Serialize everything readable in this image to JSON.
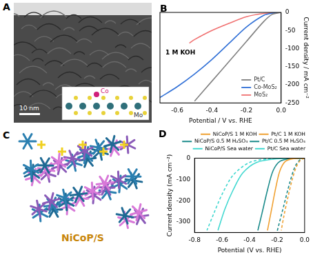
{
  "chart_data": [
    {
      "panel": "B",
      "type": "line",
      "x_label": "Potential / V vs. RHE",
      "y_label": "Current density / mA cm⁻²",
      "annotation": "1 M KOH",
      "xlim": [
        -0.7,
        0
      ],
      "xticks": [
        -0.6,
        -0.4,
        -0.2,
        {
          "value": 0,
          "label": "0.0"
        }
      ],
      "ylim": [
        -250,
        0
      ],
      "yticks": [
        0,
        -50,
        -100,
        -150,
        -200,
        -250
      ],
      "grid": false,
      "legend": "lower right",
      "series": [
        {
          "name": "Pt/C",
          "color": "#7f7f7f",
          "line_style": "solid",
          "x": [
            0,
            -0.05,
            -0.1,
            -0.2,
            -0.3,
            -0.4,
            -0.5
          ],
          "values": [
            0,
            -5,
            -25,
            -80,
            -135,
            -190,
            -245
          ]
        },
        {
          "name": "Co-MoS₂",
          "color": "#2f6fd6",
          "line_style": "solid",
          "x": [
            0,
            -0.05,
            -0.1,
            -0.2,
            -0.3,
            -0.4,
            -0.5,
            -0.6,
            -0.7
          ],
          "values": [
            0,
            -2,
            -8,
            -40,
            -85,
            -130,
            -170,
            -205,
            -235
          ]
        },
        {
          "name": "MoS₂",
          "color": "#f07070",
          "line_style": "solid",
          "x": [
            0,
            -0.1,
            -0.2,
            -0.3,
            -0.4,
            -0.5,
            -0.53
          ],
          "values": [
            0,
            -3,
            -12,
            -30,
            -50,
            -75,
            -85
          ]
        }
      ]
    },
    {
      "panel": "D",
      "type": "line",
      "x_label": "Potential (V vs. RHE)",
      "y_label": "Current density (mA cm⁻²)",
      "xlim": [
        -0.8,
        0
      ],
      "xticks": [
        -0.8,
        -0.6,
        -0.4,
        -0.2,
        {
          "value": 0,
          "label": "0.0"
        }
      ],
      "ylim": [
        -350,
        0
      ],
      "yticks": [
        0,
        -100,
        -200,
        -300
      ],
      "grid": false,
      "legend": "top",
      "series": [
        {
          "name": "NiCoP/S 1 M KOH",
          "color": "#f0a030",
          "line_style": "solid",
          "x": [
            0,
            -0.08,
            -0.14,
            -0.18,
            -0.21,
            -0.24,
            -0.27
          ],
          "values": [
            0,
            -2,
            -15,
            -60,
            -140,
            -240,
            -340
          ]
        },
        {
          "name": "Pt/C 1 M KOH",
          "color": "#f0a030",
          "line_style": "dashed",
          "x": [
            0,
            -0.03,
            -0.06,
            -0.09,
            -0.12,
            -0.15,
            -0.17
          ],
          "values": [
            0,
            -10,
            -40,
            -100,
            -180,
            -270,
            -340
          ]
        },
        {
          "name": "NiCoP/S 0.5 M H₂SO₄",
          "color": "#1a8a8a",
          "line_style": "solid",
          "x": [
            0,
            -0.1,
            -0.18,
            -0.23,
            -0.27,
            -0.31,
            -0.34
          ],
          "values": [
            0,
            -2,
            -15,
            -60,
            -150,
            -260,
            -340
          ]
        },
        {
          "name": "Pt/C 0.5 M H₂SO₄",
          "color": "#1a8a8a",
          "line_style": "dashed",
          "x": [
            0,
            -0.03,
            -0.07,
            -0.11,
            -0.15,
            -0.19,
            -0.2
          ],
          "values": [
            0,
            -5,
            -40,
            -120,
            -220,
            -320,
            -345
          ]
        },
        {
          "name": "NiCoP/S Sea water",
          "color": "#40d8d0",
          "line_style": "solid",
          "x": [
            0,
            -0.2,
            -0.35,
            -0.45,
            -0.52,
            -0.58,
            -0.63
          ],
          "values": [
            0,
            -3,
            -20,
            -70,
            -150,
            -240,
            -340
          ]
        },
        {
          "name": "Pt/C Sea water",
          "color": "#40d8d0",
          "line_style": "dashed",
          "x": [
            0,
            -0.25,
            -0.4,
            -0.52,
            -0.6,
            -0.66,
            -0.71
          ],
          "values": [
            0,
            -3,
            -20,
            -80,
            -170,
            -260,
            -340
          ]
        }
      ]
    }
  ],
  "images": [
    {
      "panel": "A",
      "scale_bar": "10 nm",
      "inset_labels": [
        "Co",
        "Mo"
      ]
    },
    {
      "panel": "C",
      "caption": "NiCoP/S"
    }
  ]
}
